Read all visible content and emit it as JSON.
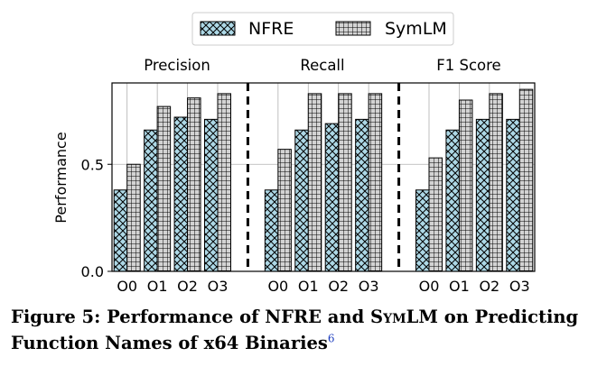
{
  "colors": {
    "nfre_fill": "#add8e6",
    "symlm_fill": "#d3d3d3",
    "edge": "#000000",
    "footnote": "#1f3fbf"
  },
  "chart_data": {
    "type": "bar",
    "panels": [
      "Precision",
      "Recall",
      "F1 Score"
    ],
    "categories": [
      "O0",
      "O1",
      "O2",
      "O3"
    ],
    "ylabel": "Performance",
    "ylim": [
      0,
      0.88
    ],
    "yticks": [
      "0.0",
      "0.5"
    ],
    "ytick_values": [
      0.0,
      0.5
    ],
    "grid": "x-only, light gray",
    "legend_position": "top-center",
    "series": [
      {
        "name": "NFRE",
        "hatch": "cross-diagonal",
        "values": {
          "Precision": [
            0.38,
            0.66,
            0.72,
            0.71
          ],
          "Recall": [
            0.38,
            0.66,
            0.69,
            0.71
          ],
          "F1 Score": [
            0.38,
            0.66,
            0.71,
            0.71
          ]
        }
      },
      {
        "name": "SymLM",
        "hatch": "grid",
        "values": {
          "Precision": [
            0.5,
            0.77,
            0.81,
            0.83
          ],
          "Recall": [
            0.57,
            0.83,
            0.83,
            0.83
          ],
          "F1 Score": [
            0.53,
            0.8,
            0.83,
            0.85
          ]
        }
      }
    ]
  },
  "caption": {
    "prefix": "Figure 5: Performance of NFRE and ",
    "name": "SymLM",
    "suffix_line1": " on Predicting",
    "line2": "Function Names of x64 Binaries",
    "footnote_mark": "6"
  }
}
